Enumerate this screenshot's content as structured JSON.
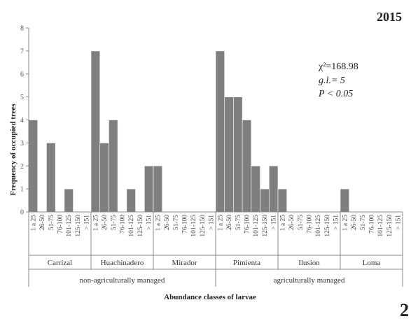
{
  "chart_data": {
    "type": "bar",
    "year_label": "2015",
    "panel_label": "2",
    "ylabel": "Frequency of occupied trees",
    "xlabel": "Abundance classes of larvae",
    "ylim": [
      0,
      8
    ],
    "yticks": [
      "0",
      "1",
      "2",
      "3",
      "4",
      "5",
      "6",
      "7",
      "8"
    ],
    "classes": [
      "1 a 25",
      "26-50",
      "51-75",
      "76-100",
      "101-125",
      "125-150",
      "> 151"
    ],
    "sites": [
      {
        "name": "Carrizal",
        "values": [
          4,
          0,
          3,
          0,
          1,
          0,
          0
        ]
      },
      {
        "name": "Huachinadero",
        "values": [
          7,
          3,
          4,
          0,
          1,
          0,
          2
        ]
      },
      {
        "name": "Mirador",
        "values": [
          2,
          0,
          0,
          0,
          0,
          0,
          0
        ]
      },
      {
        "name": "Pimienta",
        "values": [
          7,
          5,
          5,
          4,
          2,
          1,
          2
        ]
      },
      {
        "name": "Ilusion",
        "values": [
          1,
          0,
          0,
          0,
          0,
          0,
          0
        ]
      },
      {
        "name": "Loma",
        "values": [
          1,
          0,
          0,
          0,
          0,
          0,
          0
        ]
      }
    ],
    "groups": [
      {
        "name": "non-agriculturally managed",
        "sites": 3
      },
      {
        "name": "agriculturally managed",
        "sites": 3
      }
    ],
    "annotation": {
      "chi": "χ²=168.98",
      "df": "g.l.= 5",
      "p": "P < 0.05"
    },
    "grid": false
  }
}
